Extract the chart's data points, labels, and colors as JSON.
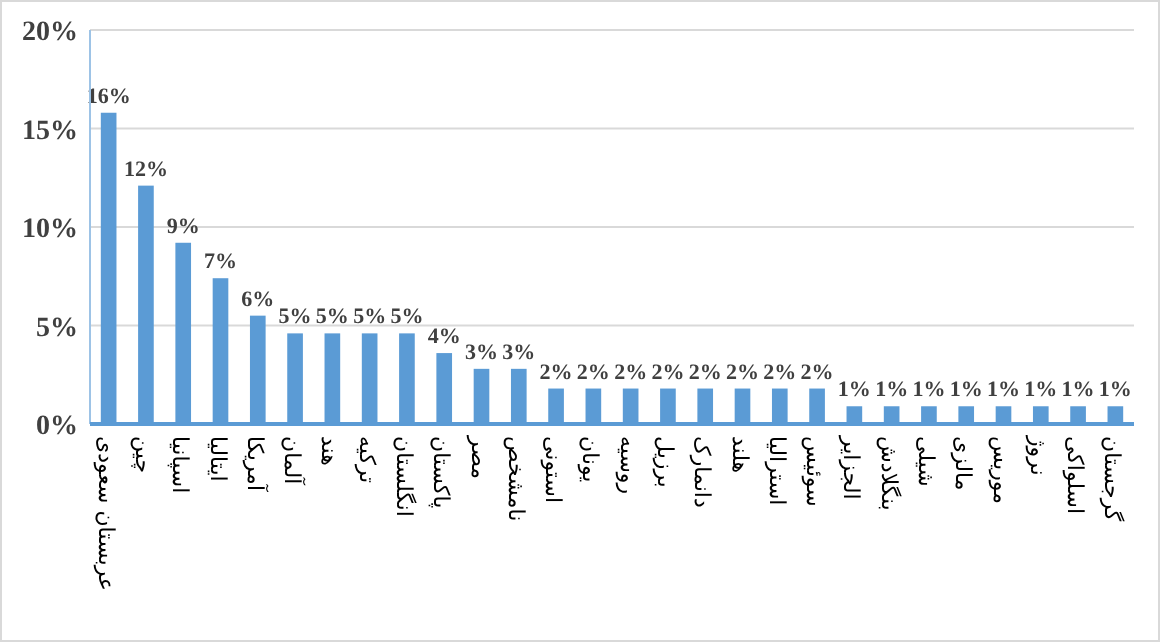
{
  "chart_data": {
    "type": "bar",
    "categories": [
      "عربستان سعودی",
      "چین",
      "اسپانیا",
      "ایتالیا",
      "آمریکا",
      "آلمان",
      "هند",
      "ترکیه",
      "انگلستان",
      "پاکستان",
      "مصر",
      "نامشخص",
      "استونی",
      "یونان",
      "روسیه",
      "برزیل",
      "دانمارک",
      "هلند",
      "استرالیا",
      "سوئیس",
      "الجزایر",
      "بنگلادش",
      "شیلی",
      "مالزی",
      "موریس",
      "نروژ",
      "اسلواکی",
      "گرجستان"
    ],
    "values": [
      15.8,
      12.1,
      9.2,
      7.4,
      5.5,
      4.6,
      4.6,
      4.6,
      4.6,
      3.6,
      2.8,
      2.8,
      1.8,
      1.8,
      1.8,
      1.8,
      1.8,
      1.8,
      1.8,
      1.8,
      0.9,
      0.9,
      0.9,
      0.9,
      0.9,
      0.9,
      0.9,
      0.9
    ],
    "value_labels": [
      "16%",
      "12%",
      "9%",
      "7%",
      "6%",
      "5%",
      "5%",
      "5%",
      "5%",
      "4%",
      "3%",
      "3%",
      "2%",
      "2%",
      "2%",
      "2%",
      "2%",
      "2%",
      "2%",
      "2%",
      "1%",
      "1%",
      "1%",
      "1%",
      "1%",
      "1%",
      "1%",
      "1%"
    ],
    "color": "#5b9bd5",
    "ylim": [
      0,
      20
    ],
    "yticks": [
      {
        "value": 0,
        "label": "0%"
      },
      {
        "value": 5,
        "label": "5%"
      },
      {
        "value": 10,
        "label": "10%"
      },
      {
        "value": 15,
        "label": "15%"
      },
      {
        "value": 20,
        "label": "20%"
      }
    ],
    "grid": "y"
  }
}
